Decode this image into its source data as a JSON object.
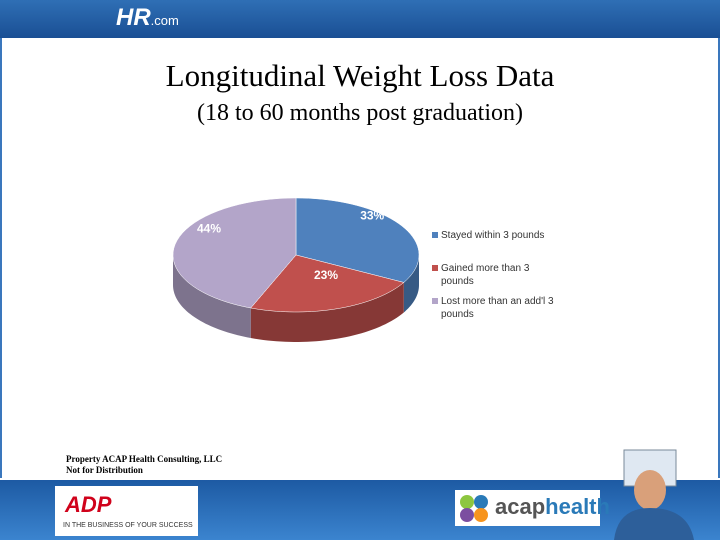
{
  "header": {
    "logo": "HR",
    "logo_suffix": ".com"
  },
  "chart_data": {
    "type": "pie3d",
    "title": "Longitudinal Weight Loss Data",
    "subtitle": "(18 to 60 months post graduation)",
    "categories": [
      "Stayed within 3 pounds",
      "Gained more than 3 pounds",
      "Lost more than an add'l 3 pounds"
    ],
    "values": [
      33,
      23,
      44
    ],
    "value_labels": [
      "33%",
      "23%",
      "44%"
    ],
    "colors": [
      "#4f81bd",
      "#c0504d",
      "#b3a5c9"
    ]
  },
  "footer": {
    "note": [
      "Property ACAP Health Consulting, LLC",
      "Not for Distribution"
    ],
    "adp_logo": "ADP",
    "adp_tagline": "IN THE BUSINESS OF YOUR SUCCESS",
    "acap_logo_a": "acap",
    "acap_logo_b": "health"
  }
}
